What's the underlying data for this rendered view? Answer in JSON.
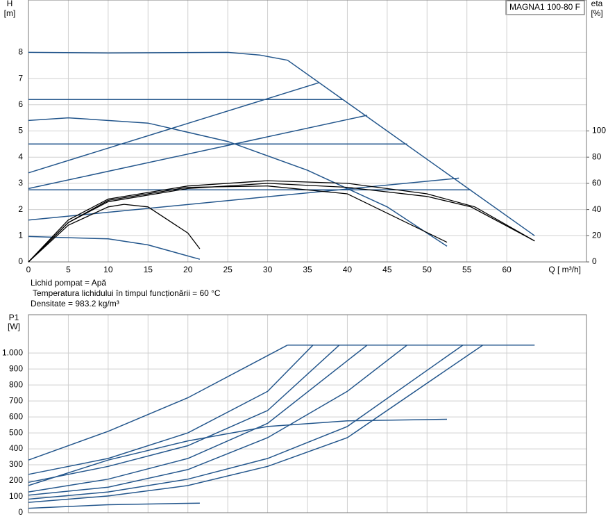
{
  "chart_data": [
    {
      "type": "line",
      "title": "MAGNA1 100-80 F",
      "ylabel": "H",
      "yunit": "[m]",
      "y2label": "eta",
      "y2unit": "[%]",
      "xlabel": "Q [ m³/h]",
      "annotations": [
        "Lichid pompat = Apă",
        "Temperatura lichidului în timpul funcționării = 60  °C",
        "Densitate = 983.2  kg/m³"
      ],
      "xlim": [
        0,
        70
      ],
      "xticks": [
        0,
        5,
        10,
        15,
        20,
        25,
        30,
        35,
        40,
        45,
        50,
        55,
        60
      ],
      "ylim": [
        0,
        10
      ],
      "yticks": [
        0,
        1,
        2,
        3,
        4,
        5,
        6,
        7,
        8
      ],
      "y2lim": [
        0,
        200
      ],
      "y2ticks": [
        0,
        20,
        40,
        60,
        80,
        100
      ],
      "grid": true,
      "series": [
        {
          "color": "#23568c",
          "x": [
            0,
            10,
            25,
            29,
            32.5,
            63.5
          ],
          "values": [
            8,
            7.98,
            8,
            7.9,
            7.7,
            1
          ]
        },
        {
          "color": "#23568c",
          "x": [
            0,
            39.4
          ],
          "values": [
            6.2,
            6.2
          ]
        },
        {
          "color": "#23568c",
          "x": [
            0,
            47.5
          ],
          "values": [
            4.5,
            4.5
          ]
        },
        {
          "color": "#23568c",
          "x": [
            0,
            55.5
          ],
          "values": [
            2.75,
            2.75
          ]
        },
        {
          "color": "#23568c",
          "x": [
            0,
            36.5
          ],
          "values": [
            3.4,
            6.85
          ]
        },
        {
          "color": "#23568c",
          "x": [
            0,
            42.5
          ],
          "values": [
            2.8,
            5.6
          ]
        },
        {
          "color": "#23568c",
          "x": [
            0,
            54
          ],
          "values": [
            1.6,
            3.2
          ]
        },
        {
          "color": "#23568c",
          "x": [
            0,
            5,
            15,
            25,
            35,
            45,
            52.5
          ],
          "values": [
            5.4,
            5.5,
            5.3,
            4.6,
            3.5,
            2.1,
            0.6
          ]
        },
        {
          "color": "#23568c",
          "x": [
            0,
            10,
            15,
            21.5
          ],
          "values": [
            0.97,
            0.88,
            0.65,
            0.1
          ]
        },
        {
          "color": "#000000",
          "axis": "y2",
          "x": [
            0,
            5,
            10,
            20,
            30,
            40,
            50,
            56,
            63.5
          ],
          "values": [
            0,
            32,
            48,
            58,
            62,
            60,
            52,
            42,
            16
          ]
        },
        {
          "color": "#000000",
          "axis": "y2",
          "x": [
            0,
            5,
            10,
            20,
            30,
            40,
            50,
            55.5,
            63.5
          ],
          "values": [
            0,
            30,
            46,
            56,
            60,
            57,
            50,
            42,
            16
          ]
        },
        {
          "color": "#000000",
          "axis": "y2",
          "x": [
            0,
            5,
            10,
            20,
            30,
            40,
            52.5
          ],
          "values": [
            0,
            30,
            47,
            57,
            58,
            52,
            15
          ]
        },
        {
          "color": "#000000",
          "axis": "y2",
          "x": [
            0,
            5,
            10,
            12,
            15,
            20,
            21.5
          ],
          "values": [
            0,
            28,
            42,
            44,
            42,
            22,
            10
          ]
        }
      ]
    },
    {
      "type": "line",
      "ylabel": "P1",
      "yunit": "[W]",
      "xlim": [
        0,
        70
      ],
      "ylim": [
        0,
        1240
      ],
      "yticks": [
        0,
        100,
        200,
        300,
        400,
        500,
        600,
        700,
        800,
        900,
        {
          "value": 1000,
          "label": "1.000"
        }
      ],
      "grid": true,
      "series": [
        {
          "color": "#23568c",
          "x": [
            32.5,
            63.5
          ],
          "values": [
            1050,
            1050
          ]
        },
        {
          "color": "#23568c",
          "x": [
            0,
            10,
            20,
            32.5
          ],
          "values": [
            330,
            510,
            720,
            1050
          ]
        },
        {
          "color": "#23568c",
          "x": [
            0,
            10,
            20,
            30,
            35.7
          ],
          "values": [
            240,
            340,
            500,
            760,
            1050
          ]
        },
        {
          "color": "#23568c",
          "x": [
            0,
            10,
            20,
            30,
            39
          ],
          "values": [
            190,
            290,
            420,
            640,
            1050
          ]
        },
        {
          "color": "#23568c",
          "x": [
            0,
            10,
            20,
            30,
            42.5
          ],
          "values": [
            130,
            210,
            340,
            560,
            1050
          ]
        },
        {
          "color": "#23568c",
          "x": [
            0,
            10,
            20,
            30,
            40,
            47.5
          ],
          "values": [
            110,
            160,
            270,
            470,
            760,
            1050
          ]
        },
        {
          "color": "#23568c",
          "x": [
            0,
            10,
            20,
            30,
            40,
            54.5
          ],
          "values": [
            85,
            130,
            210,
            340,
            540,
            1050
          ]
        },
        {
          "color": "#23568c",
          "x": [
            0,
            10,
            20,
            30,
            40,
            57
          ],
          "values": [
            65,
            105,
            170,
            290,
            470,
            1050
          ]
        },
        {
          "color": "#23568c",
          "x": [
            0,
            10,
            20,
            30,
            40,
            52.5
          ],
          "values": [
            170,
            330,
            450,
            540,
            575,
            585
          ]
        },
        {
          "color": "#23568c",
          "x": [
            0,
            10,
            21.5
          ],
          "values": [
            28,
            50,
            60
          ]
        }
      ]
    }
  ]
}
